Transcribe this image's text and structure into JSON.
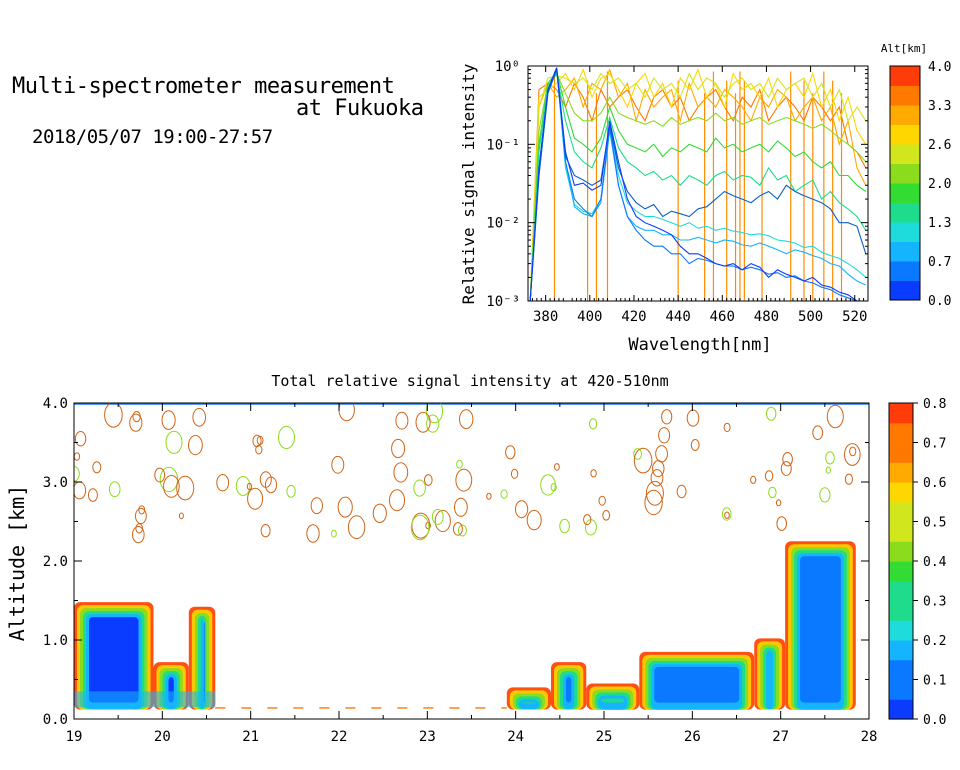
{
  "header": {
    "line1": "Multi-spectrometer measurement",
    "line2": "at Fukuoka",
    "line3": "2018/05/07 19:00-27:57"
  },
  "colors": {
    "colorbar_palette": [
      "#0a3cff",
      "#0a78ff",
      "#14b4ff",
      "#1edcdc",
      "#1edc8c",
      "#32dc32",
      "#8cdc1e",
      "#d2e61e",
      "#ffd700",
      "#ffaa00",
      "#ff7800",
      "#ff3c0a"
    ]
  },
  "chart_data": [
    {
      "type": "line",
      "xlabel": "Wavelength[nm]",
      "ylabel": "Relative signal intensity",
      "xlim": [
        372,
        526
      ],
      "ylim": [
        0.001,
        1
      ],
      "yscale": "log",
      "xticks": [
        380,
        400,
        420,
        440,
        460,
        480,
        500,
        520
      ],
      "yticks": [
        {
          "value": 1,
          "label": "10⁰"
        },
        {
          "value": 0.1,
          "label": "10⁻¹"
        },
        {
          "value": 0.01,
          "label": "10⁻²"
        },
        {
          "value": 0.001,
          "label": "10⁻³"
        }
      ],
      "colorbar": {
        "title": "Alt[km]",
        "ticks": [
          "4.0",
          "3.3",
          "2.6",
          "2.0",
          "1.3",
          "0.7",
          "0.0"
        ]
      },
      "x": [
        373,
        377,
        381,
        385,
        389,
        393,
        397,
        401,
        405,
        409,
        413,
        417,
        421,
        425,
        429,
        433,
        437,
        441,
        445,
        449,
        453,
        457,
        461,
        465,
        469,
        473,
        477,
        481,
        485,
        489,
        493,
        497,
        501,
        505,
        509,
        513,
        517,
        521,
        525
      ],
      "series": [
        {
          "color": "#0a3cff",
          "values": [
            0.001,
            0.05,
            0.5,
            0.95,
            0.08,
            0.03,
            0.032,
            0.026,
            0.03,
            0.2,
            0.06,
            0.02,
            0.012,
            0.01,
            0.009,
            0.008,
            0.007,
            0.005,
            0.004,
            0.004,
            0.0035,
            0.003,
            0.0028,
            0.003,
            0.0025,
            0.003,
            0.0027,
            0.002,
            0.0025,
            0.0022,
            0.002,
            0.0018,
            0.002,
            0.0016,
            0.0015,
            0.0013,
            0.0012,
            0.001,
            0.001
          ]
        },
        {
          "color": "#0a60c8",
          "values": [
            0.001,
            0.04,
            0.45,
            0.9,
            0.07,
            0.04,
            0.035,
            0.03,
            0.035,
            0.18,
            0.05,
            0.025,
            0.018,
            0.015,
            0.017,
            0.012,
            0.014,
            0.013,
            0.012,
            0.015,
            0.016,
            0.02,
            0.025,
            0.022,
            0.02,
            0.018,
            0.022,
            0.025,
            0.02,
            0.03,
            0.025,
            0.022,
            0.02,
            0.018,
            0.015,
            0.01,
            0.01,
            0.009,
            0.004
          ]
        },
        {
          "color": "#0a78ff",
          "values": [
            0.001,
            0.05,
            0.48,
            0.92,
            0.06,
            0.02,
            0.015,
            0.012,
            0.02,
            0.17,
            0.03,
            0.012,
            0.008,
            0.006,
            0.005,
            0.005,
            0.004,
            0.004,
            0.003,
            0.0035,
            0.0033,
            0.003,
            0.0028,
            0.0028,
            0.0025,
            0.0027,
            0.0025,
            0.0022,
            0.0023,
            0.002,
            0.0021,
            0.0018,
            0.0017,
            0.0015,
            0.0014,
            0.0012,
            0.0011,
            0.001,
            0.001
          ]
        },
        {
          "color": "#14b4ff",
          "values": [
            0.001,
            0.04,
            0.45,
            0.9,
            0.06,
            0.016,
            0.013,
            0.012,
            0.018,
            0.15,
            0.03,
            0.012,
            0.009,
            0.008,
            0.008,
            0.007,
            0.007,
            0.006,
            0.006,
            0.0065,
            0.006,
            0.0055,
            0.006,
            0.0058,
            0.0052,
            0.005,
            0.0055,
            0.005,
            0.0045,
            0.004,
            0.0045,
            0.0042,
            0.0038,
            0.0035,
            0.003,
            0.0028,
            0.0022,
            0.0018,
            0.0016
          ]
        },
        {
          "color": "#1edcdc",
          "values": [
            0.001,
            0.05,
            0.5,
            0.95,
            0.05,
            0.017,
            0.014,
            0.013,
            0.02,
            0.16,
            0.04,
            0.018,
            0.014,
            0.012,
            0.012,
            0.011,
            0.01,
            0.009,
            0.01,
            0.0085,
            0.009,
            0.008,
            0.0085,
            0.0078,
            0.0075,
            0.007,
            0.0072,
            0.0068,
            0.006,
            0.0058,
            0.0055,
            0.0048,
            0.005,
            0.0042,
            0.0038,
            0.0035,
            0.003,
            0.0025,
            0.002
          ]
        },
        {
          "color": "#1edc8c",
          "values": [
            0.001,
            0.08,
            0.55,
            0.8,
            0.2,
            0.08,
            0.06,
            0.05,
            0.09,
            0.22,
            0.09,
            0.06,
            0.05,
            0.04,
            0.045,
            0.035,
            0.04,
            0.03,
            0.04,
            0.035,
            0.03,
            0.04,
            0.045,
            0.035,
            0.04,
            0.038,
            0.03,
            0.05,
            0.035,
            0.04,
            0.025,
            0.03,
            0.035,
            0.02,
            0.025,
            0.018,
            0.015,
            0.012,
            0.008
          ]
        },
        {
          "color": "#32dc32",
          "values": [
            0.001,
            0.1,
            0.6,
            0.85,
            0.3,
            0.12,
            0.1,
            0.08,
            0.12,
            0.3,
            0.15,
            0.1,
            0.09,
            0.08,
            0.1,
            0.07,
            0.09,
            0.08,
            0.1,
            0.09,
            0.08,
            0.12,
            0.09,
            0.1,
            0.08,
            0.09,
            0.1,
            0.08,
            0.11,
            0.09,
            0.07,
            0.08,
            0.06,
            0.05,
            0.06,
            0.04,
            0.04,
            0.03,
            0.025
          ]
        },
        {
          "color": "#8cdc1e",
          "values": [
            0.001,
            0.15,
            0.6,
            0.8,
            0.45,
            0.25,
            0.2,
            0.2,
            0.25,
            0.4,
            0.25,
            0.22,
            0.2,
            0.18,
            0.2,
            0.17,
            0.22,
            0.18,
            0.2,
            0.22,
            0.2,
            0.25,
            0.2,
            0.22,
            0.18,
            0.2,
            0.22,
            0.18,
            0.2,
            0.22,
            0.2,
            0.18,
            0.16,
            0.18,
            0.15,
            0.12,
            0.1,
            0.08,
            0.06
          ]
        },
        {
          "color": "#d2e61e",
          "values": [
            0.001,
            0.3,
            0.7,
            0.75,
            0.7,
            0.6,
            0.7,
            0.5,
            0.8,
            0.6,
            0.7,
            0.5,
            0.6,
            0.4,
            0.7,
            0.5,
            0.6,
            0.4,
            0.8,
            0.5,
            0.7,
            0.6,
            0.4,
            0.6,
            0.7,
            0.5,
            0.6,
            0.4,
            0.7,
            0.5,
            0.6,
            0.7,
            0.4,
            0.6,
            0.3,
            0.5,
            0.2,
            0.3,
            0.2
          ]
        },
        {
          "color": "#ffd700",
          "values": [
            0.001,
            0.4,
            0.5,
            0.6,
            0.8,
            0.5,
            0.9,
            0.4,
            0.7,
            0.8,
            0.5,
            0.3,
            0.6,
            0.8,
            0.4,
            0.6,
            0.3,
            0.7,
            0.5,
            0.9,
            0.4,
            0.6,
            0.3,
            0.8,
            0.5,
            0.6,
            0.4,
            0.7,
            0.3,
            0.5,
            0.6,
            0.4,
            0.8,
            0.3,
            0.5,
            0.2,
            0.4,
            0.15,
            0.1
          ]
        },
        {
          "color": "#ffaa00",
          "values": [
            0.001,
            0.3,
            0.6,
            0.4,
            0.5,
            0.7,
            0.3,
            0.6,
            0.5,
            0.9,
            0.4,
            0.6,
            0.2,
            0.5,
            0.3,
            0.4,
            0.5,
            0.2,
            0.6,
            0.3,
            0.4,
            0.3,
            0.5,
            0.4,
            0.3,
            0.2,
            0.4,
            0.3,
            0.5,
            0.4,
            0.2,
            0.3,
            0.4,
            0.2,
            0.3,
            0.1,
            0.2,
            0.05,
            0.03
          ]
        },
        {
          "color": "#ff7800",
          "values": [
            0.001,
            0.5,
            0.6,
            0.5,
            0.3,
            0.6,
            0.4,
            0.2,
            0.5,
            0.3,
            0.4,
            0.5,
            0.3,
            0.2,
            0.4,
            0.5,
            0.3,
            0.4,
            0.2,
            0.3,
            0.4,
            0.5,
            0.3,
            0.2,
            0.4,
            0.3,
            0.5,
            0.2,
            0.3,
            0.4,
            0.3,
            0.2,
            0.4,
            0.3,
            0.2,
            0.3,
            0.1,
            0.08,
            0.05
          ]
        }
      ],
      "spikes_x": [
        384,
        399,
        403,
        408,
        440,
        452,
        456,
        462,
        466,
        468,
        470,
        478,
        491,
        497,
        501,
        506,
        510,
        514
      ]
    },
    {
      "type": "heatmap",
      "title": "Total relative signal intensity at 420-510nm",
      "xlabel": "",
      "ylabel": "Altitude [km]",
      "xlim": [
        19,
        28
      ],
      "ylim": [
        0,
        4
      ],
      "xticks": [
        "19",
        "20",
        "21",
        "22",
        "23",
        "24",
        "25",
        "26",
        "27",
        "28"
      ],
      "yticks": [
        "0.0",
        "1.0",
        "2.0",
        "3.0",
        "4.0"
      ],
      "colorbar": {
        "range": [
          0,
          0.8
        ],
        "ticks": [
          "0.8",
          "0.7",
          "0.6",
          "0.5",
          "0.4",
          "0.3",
          "0.2",
          "0.1",
          "0.0"
        ]
      },
      "regions": [
        {
          "x": [
            19.0,
            19.9
          ],
          "top": 1.48,
          "value": 0.05
        },
        {
          "x": [
            19.9,
            20.3
          ],
          "top": 0.72,
          "value": 0.06
        },
        {
          "x": [
            20.3,
            20.6
          ],
          "top": 1.42,
          "value": 0.08
        },
        {
          "x": [
            23.9,
            24.4
          ],
          "top": 0.4,
          "value": 0.3
        },
        {
          "x": [
            24.4,
            24.8
          ],
          "top": 0.72,
          "value": 0.12
        },
        {
          "x": [
            24.8,
            25.4
          ],
          "top": 0.45,
          "value": 0.3
        },
        {
          "x": [
            25.4,
            26.7
          ],
          "top": 0.85,
          "value": 0.12
        },
        {
          "x": [
            26.7,
            27.05
          ],
          "top": 1.02,
          "value": 0.14
        },
        {
          "x": [
            27.05,
            27.85
          ],
          "top": 2.25,
          "value": 0.08
        }
      ]
    }
  ]
}
